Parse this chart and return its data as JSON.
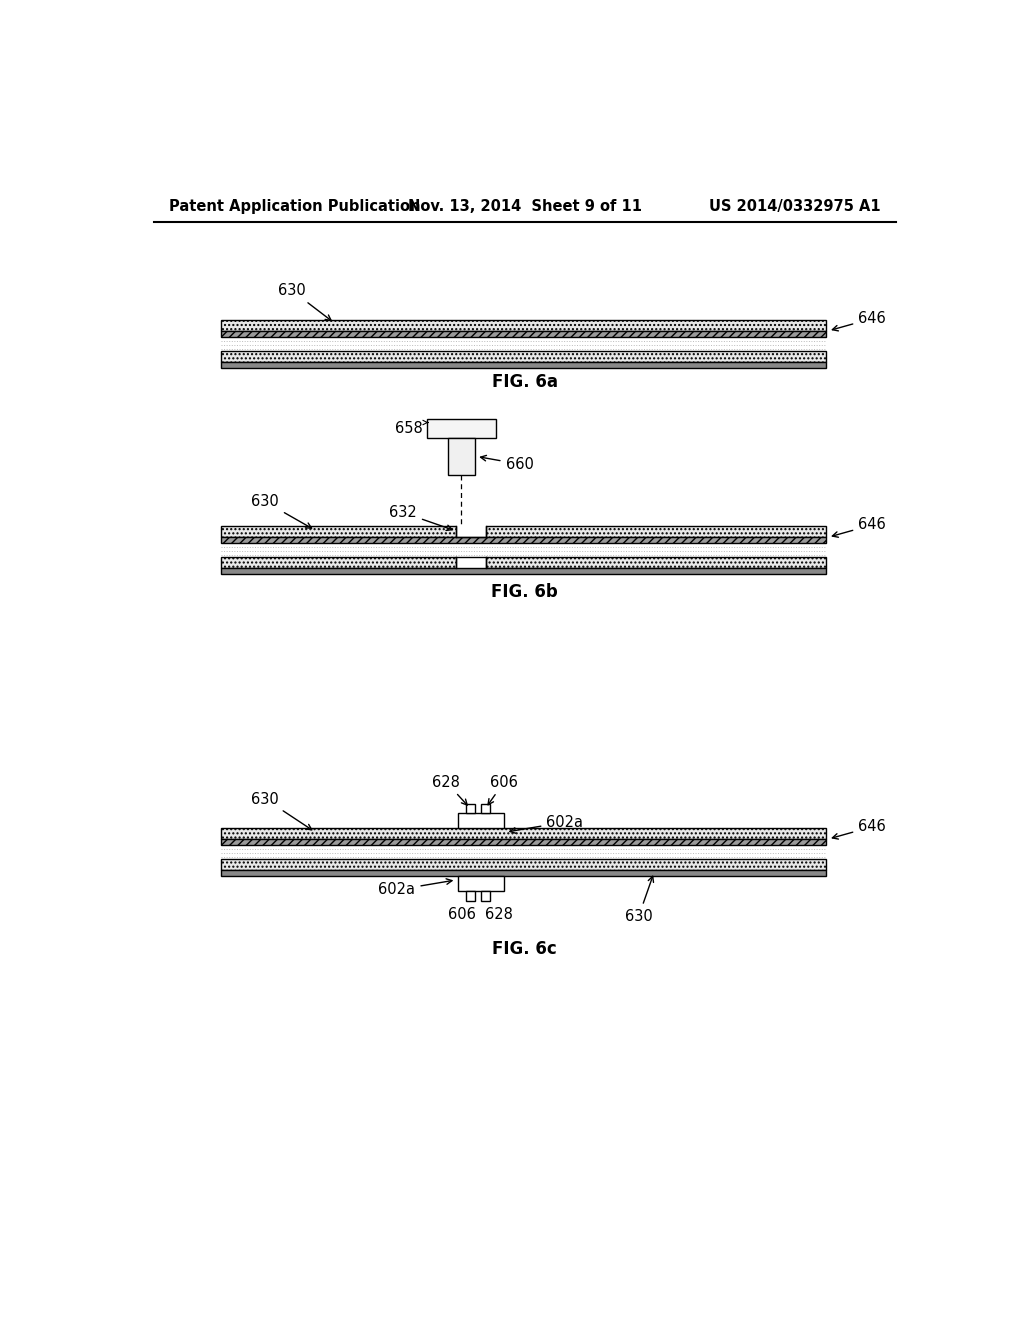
{
  "title_left": "Patent Application Publication",
  "title_center": "Nov. 13, 2014  Sheet 9 of 11",
  "title_right": "US 2014/0332975 A1",
  "bg_color": "#ffffff",
  "fig6a_label": "FIG. 6a",
  "fig6b_label": "FIG. 6b",
  "fig6c_label": "FIG. 6c",
  "black": "#000000",
  "gray_hatch": "#e0e0e0",
  "dark_stripe": "#888888",
  "dot_color": "#aaaaaa"
}
